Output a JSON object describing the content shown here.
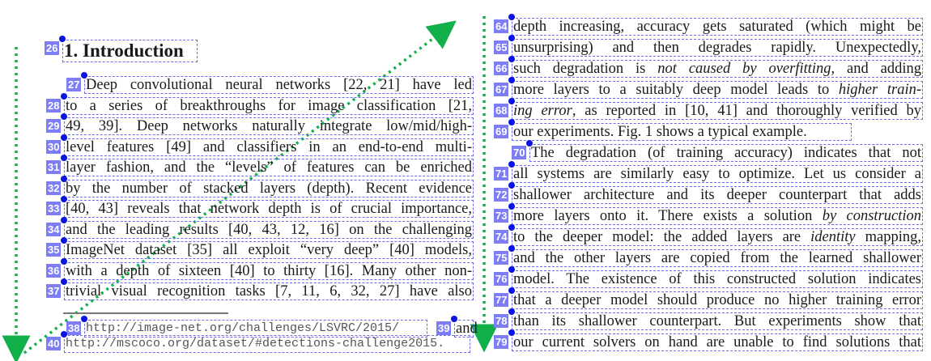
{
  "left_column": {
    "heading": {
      "num": "26",
      "text": "1. Introduction"
    },
    "lines": [
      {
        "num": "27",
        "segs": [
          {
            "t": "Deep convolutional neural networks [22, 21] have led"
          }
        ]
      },
      {
        "num": "28",
        "segs": [
          {
            "t": "to a series of breakthroughs for image classification [21,"
          }
        ]
      },
      {
        "num": "29",
        "segs": [
          {
            "t": "49, 39].  Deep networks naturally integrate low/mid/high-"
          }
        ]
      },
      {
        "num": "30",
        "segs": [
          {
            "t": "level features [49] and classifiers in an end-to-end multi-"
          }
        ]
      },
      {
        "num": "31",
        "segs": [
          {
            "t": "layer fashion, and the “levels” of features can be enriched"
          }
        ]
      },
      {
        "num": "32",
        "segs": [
          {
            "t": "by the number of stacked layers (depth).  Recent evidence"
          }
        ]
      },
      {
        "num": "33",
        "segs": [
          {
            "t": "[40, 43] reveals that network depth is of crucial importance,"
          }
        ]
      },
      {
        "num": "34",
        "segs": [
          {
            "t": "and the leading results [40, 43, 12, 16] on the challenging"
          }
        ]
      },
      {
        "num": "35",
        "segs": [
          {
            "t": "ImageNet dataset [35] all exploit “very deep” [40] models,"
          }
        ]
      },
      {
        "num": "36",
        "segs": [
          {
            "t": "with a depth of sixteen [40] to thirty [16]. Many other non-"
          }
        ]
      },
      {
        "num": "37",
        "segs": [
          {
            "t": "trivial visual recognition tasks [7, 11, 6, 32, 27] have also"
          }
        ]
      }
    ],
    "footnotes": [
      {
        "num": "38",
        "text": "http://image-net.org/challenges/LSVRC/2015/"
      },
      {
        "num": "39",
        "text": "and"
      },
      {
        "num": "40",
        "text": "http://mscoco.org/dataset/#detections-challenge2015."
      }
    ]
  },
  "right_column": {
    "lines": [
      {
        "num": "64",
        "segs": [
          {
            "t": "depth increasing, accuracy gets saturated (which might be"
          }
        ]
      },
      {
        "num": "65",
        "segs": [
          {
            "t": "unsurprising) and then degrades rapidly.  Unexpectedly,"
          }
        ]
      },
      {
        "num": "66",
        "segs": [
          {
            "t": "such degradation is "
          },
          {
            "t": "not caused by overfitting",
            "i": true
          },
          {
            "t": ", and adding"
          }
        ]
      },
      {
        "num": "67",
        "segs": [
          {
            "t": "more layers to a suitably deep model leads to "
          },
          {
            "t": "higher train-",
            "i": true
          }
        ]
      },
      {
        "num": "68",
        "segs": [
          {
            "t": "ing error",
            "i": true
          },
          {
            "t": ", as reported in [10, 41] and thoroughly verified by"
          }
        ]
      },
      {
        "num": "69",
        "segs": [
          {
            "t": "our experiments. Fig. 1 shows a typical example."
          }
        ]
      },
      {
        "num": "70",
        "segs": [
          {
            "t": "The degradation (of training accuracy) indicates that not"
          }
        ]
      },
      {
        "num": "71",
        "segs": [
          {
            "t": "all systems are similarly easy to optimize. Let us consider a"
          }
        ]
      },
      {
        "num": "72",
        "segs": [
          {
            "t": "shallower architecture and its deeper counterpart that adds"
          }
        ]
      },
      {
        "num": "73",
        "segs": [
          {
            "t": "more layers onto it. There exists a solution "
          },
          {
            "t": "by construction",
            "i": true
          }
        ]
      },
      {
        "num": "74",
        "segs": [
          {
            "t": "to the deeper model: the added layers are "
          },
          {
            "t": "identity",
            "i": true
          },
          {
            "t": " mapping,"
          }
        ]
      },
      {
        "num": "75",
        "segs": [
          {
            "t": "and the other layers are copied from the learned shallower"
          }
        ]
      },
      {
        "num": "76",
        "segs": [
          {
            "t": "model. The existence of this constructed solution indicates"
          }
        ]
      },
      {
        "num": "77",
        "segs": [
          {
            "t": "that a deeper model should produce no higher training error"
          }
        ]
      },
      {
        "num": "78",
        "segs": [
          {
            "t": "than its shallower counterpart.  But experiments show that"
          }
        ]
      },
      {
        "num": "79",
        "segs": [
          {
            "t": "our current solvers on hand are unable to find solutions that"
          }
        ]
      }
    ]
  },
  "colors": {
    "box": "#6b6bf0",
    "badge": "#7d7df5",
    "dot": "#0a14e0",
    "arrow": "#12b04a"
  }
}
